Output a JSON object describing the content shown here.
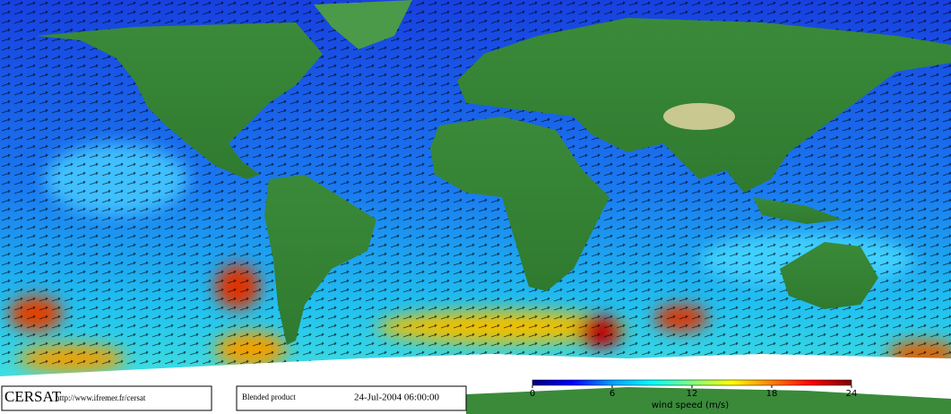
{
  "footer": {
    "logo": "CERSAT",
    "url": "http://www.ifremer.fr/cersat",
    "product": "Blended product",
    "date": "24-Jul-2004 06:00:00"
  },
  "colorbar": {
    "label": "wind speed (m/s)",
    "range": [
      0,
      24
    ],
    "ticks": [
      0,
      6,
      12,
      18,
      24
    ],
    "colors": [
      "#000080",
      "#0000ff",
      "#00a0ff",
      "#00ffff",
      "#80ff80",
      "#ffff00",
      "#ff8000",
      "#ff0000",
      "#800000"
    ]
  }
}
